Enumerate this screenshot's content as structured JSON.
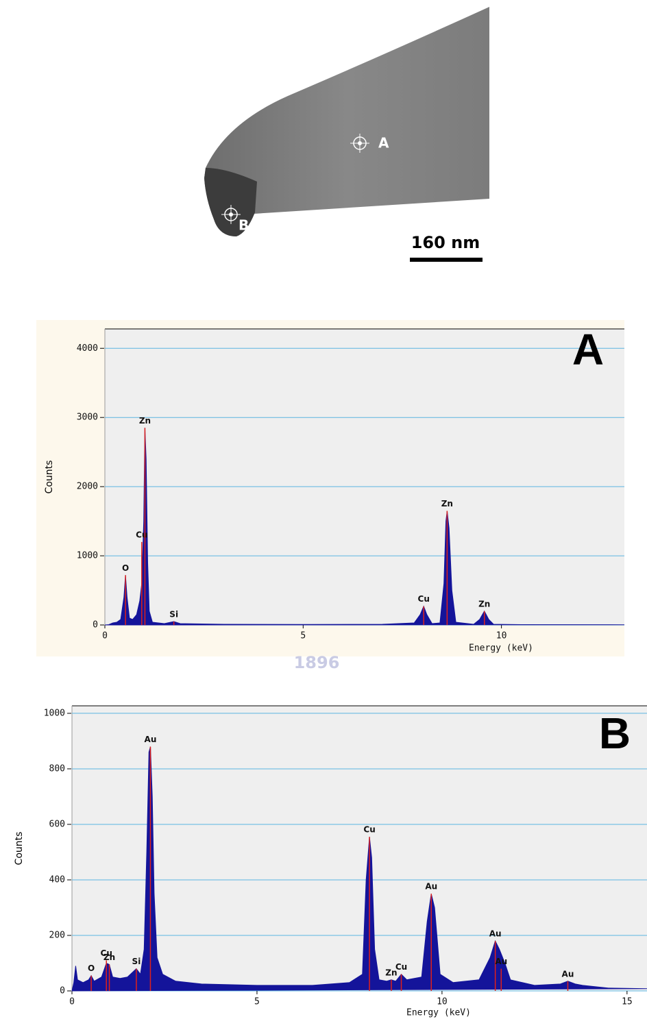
{
  "image": {
    "labels": [
      "A",
      "B"
    ],
    "scale_bar": "160 nm"
  },
  "watermark": "1896",
  "chart_data": [
    {
      "type": "area",
      "title": "A",
      "x_label": "Energy (keV)",
      "y_label": "Counts",
      "color": "#14149a",
      "marker_color": "#e0201a",
      "grid": true,
      "xlim": [
        0,
        13.1
      ],
      "ylim": [
        0,
        4280
      ],
      "xticks": [
        0,
        5,
        10
      ],
      "yticks": [
        0,
        1000,
        2000,
        3000,
        4000
      ],
      "x": [
        0,
        0.1,
        0.2,
        0.3,
        0.4,
        0.48,
        0.52,
        0.56,
        0.62,
        0.7,
        0.8,
        0.88,
        0.93,
        0.98,
        1.01,
        1.04,
        1.08,
        1.12,
        1.2,
        1.5,
        1.74,
        1.9,
        3,
        5,
        7,
        7.8,
        7.95,
        8.04,
        8.12,
        8.25,
        8.45,
        8.55,
        8.6,
        8.63,
        8.68,
        8.75,
        8.85,
        9.3,
        9.45,
        9.57,
        9.68,
        9.8,
        10.5,
        13.1
      ],
      "values": [
        0,
        5,
        30,
        40,
        80,
        400,
        720,
        400,
        100,
        80,
        150,
        350,
        600,
        1500,
        2850,
        2400,
        900,
        200,
        40,
        20,
        50,
        20,
        10,
        8,
        10,
        30,
        150,
        270,
        150,
        20,
        30,
        600,
        1500,
        1650,
        1400,
        500,
        40,
        10,
        80,
        200,
        80,
        10,
        5,
        3
      ],
      "annotations": [
        {
          "text": "O",
          "x": 0.52,
          "y": 720
        },
        {
          "text": "Cu",
          "x": 0.93,
          "y": 1200
        },
        {
          "text": "Zn",
          "x": 1.01,
          "y": 2850
        },
        {
          "text": "Si",
          "x": 1.74,
          "y": 50
        },
        {
          "text": "Cu",
          "x": 8.04,
          "y": 270
        },
        {
          "text": "Zn",
          "x": 8.63,
          "y": 1650
        },
        {
          "text": "Zn",
          "x": 9.57,
          "y": 200
        }
      ]
    },
    {
      "type": "area",
      "title": "B",
      "x_label": "Energy (keV)",
      "y_label": "Counts",
      "color": "#14149a",
      "marker_color": "#e0201a",
      "grid": true,
      "xlim": [
        0,
        15.54
      ],
      "ylim": [
        0,
        1027
      ],
      "xticks": [
        0,
        5,
        10,
        15
      ],
      "yticks": [
        0,
        200,
        400,
        600,
        800,
        1000
      ],
      "x": [
        0,
        0.05,
        0.1,
        0.15,
        0.3,
        0.45,
        0.52,
        0.6,
        0.8,
        0.93,
        1.01,
        1.1,
        1.3,
        1.5,
        1.74,
        1.85,
        1.95,
        2.02,
        2.08,
        2.12,
        2.17,
        2.22,
        2.3,
        2.45,
        2.8,
        3.5,
        5,
        6.5,
        7.5,
        7.85,
        7.95,
        8.04,
        8.1,
        8.18,
        8.3,
        8.5,
        8.63,
        8.75,
        8.9,
        9.05,
        9.45,
        9.6,
        9.71,
        9.8,
        9.95,
        10.3,
        11,
        11.3,
        11.44,
        11.55,
        11.7,
        11.85,
        12.5,
        13.2,
        13.4,
        13.6,
        13.8,
        14.5,
        15.54
      ],
      "values": [
        0,
        30,
        90,
        40,
        30,
        40,
        55,
        35,
        50,
        100,
        95,
        50,
        45,
        50,
        80,
        60,
        150,
        500,
        860,
        880,
        700,
        350,
        120,
        60,
        35,
        25,
        20,
        20,
        30,
        60,
        400,
        555,
        480,
        150,
        40,
        35,
        40,
        35,
        60,
        40,
        50,
        250,
        350,
        300,
        60,
        30,
        40,
        120,
        180,
        150,
        100,
        40,
        20,
        25,
        35,
        25,
        20,
        10,
        8
      ],
      "annotations": [
        {
          "text": "O",
          "x": 0.52,
          "y": 55
        },
        {
          "text": "Cu",
          "x": 0.93,
          "y": 110
        },
        {
          "text": "Zn",
          "x": 1.01,
          "y": 95
        },
        {
          "text": "Si",
          "x": 1.74,
          "y": 80
        },
        {
          "text": "Au",
          "x": 2.12,
          "y": 880
        },
        {
          "text": "Cu",
          "x": 8.04,
          "y": 555
        },
        {
          "text": "Zn",
          "x": 8.63,
          "y": 40
        },
        {
          "text": "Cu",
          "x": 8.9,
          "y": 60
        },
        {
          "text": "Au",
          "x": 9.71,
          "y": 350
        },
        {
          "text": "Au",
          "x": 11.44,
          "y": 180
        },
        {
          "text": "Au",
          "x": 11.6,
          "y": 80
        },
        {
          "text": "Au",
          "x": 13.4,
          "y": 35
        }
      ]
    }
  ]
}
